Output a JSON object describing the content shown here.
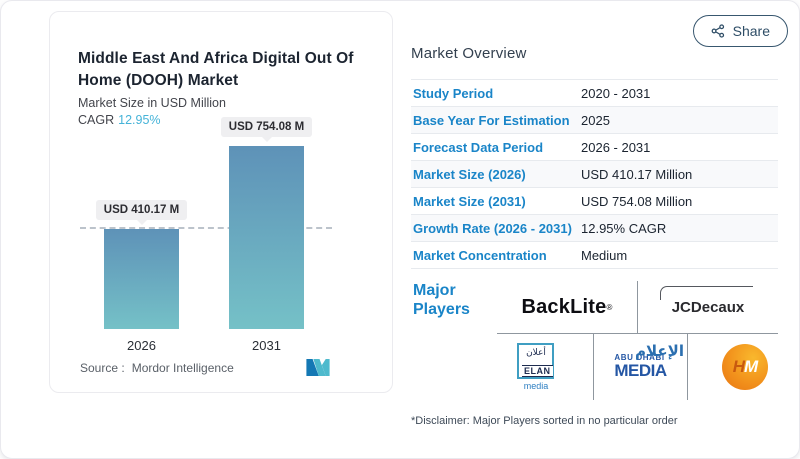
{
  "share": {
    "label": "Share"
  },
  "chart_card": {
    "title": "Middle East And Africa Digital Out Of Home (DOOH) Market",
    "subtitle": "Market Size in USD Million",
    "cagr_label": "CAGR",
    "cagr_value": "12.95%",
    "source_label": "Source :",
    "source_value": "Mordor Intelligence"
  },
  "chart_data": {
    "type": "bar",
    "title": "Middle East And Africa Digital Out Of Home (DOOH) Market",
    "ylabel": "Market Size in USD Million",
    "categories": [
      "2026",
      "2031"
    ],
    "values": [
      410.17,
      754.08
    ],
    "value_labels": [
      "USD 410.17 M",
      "USD 754.08 M"
    ],
    "ylim": [
      0,
      800
    ],
    "reference_line": 410.17,
    "grid": false,
    "bar_color_top": "#5e92b8",
    "bar_color_bottom": "#75c1c7",
    "cagr_percent": 12.95
  },
  "overview": {
    "heading": "Market Overview",
    "rows": [
      {
        "label": "Study Period",
        "value": "2020 - 2031"
      },
      {
        "label": "Base Year For Estimation",
        "value": "2025"
      },
      {
        "label": "Forecast Data Period",
        "value": "2026 - 2031"
      },
      {
        "label": "Market Size (2026)",
        "value": "USD 410.17 Million"
      },
      {
        "label": "Market Size (2031)",
        "value": "USD 754.08 Million"
      },
      {
        "label": "Growth Rate (2026 - 2031)",
        "value": "12.95% CAGR"
      },
      {
        "label": "Market Concentration",
        "value": "Medium"
      }
    ],
    "major_players_label": "Major Players",
    "disclaimer": "*Disclaimer: Major Players sorted in no particular order"
  },
  "logos": {
    "backlite": {
      "text": "BackLite",
      "reg": "®"
    },
    "jcdecaux": {
      "text": "JCDecaux"
    },
    "elan": {
      "arabic": "أعلان",
      "name": "ELAN",
      "media": "media"
    },
    "abu_dhabi": {
      "line1": "ABU DHABI",
      "line2": "MEDIA",
      "arabic": "الإعلام"
    },
    "hm": {
      "h": "H",
      "m": "M"
    }
  },
  "colors": {
    "label_blue": "#1a85c8",
    "cagr_teal": "#45b3d8",
    "share_navy": "#2e4d66",
    "hm_orange": "#f2921c",
    "mordor_blue": "#1478b4",
    "mordor_teal": "#4ebacd"
  }
}
